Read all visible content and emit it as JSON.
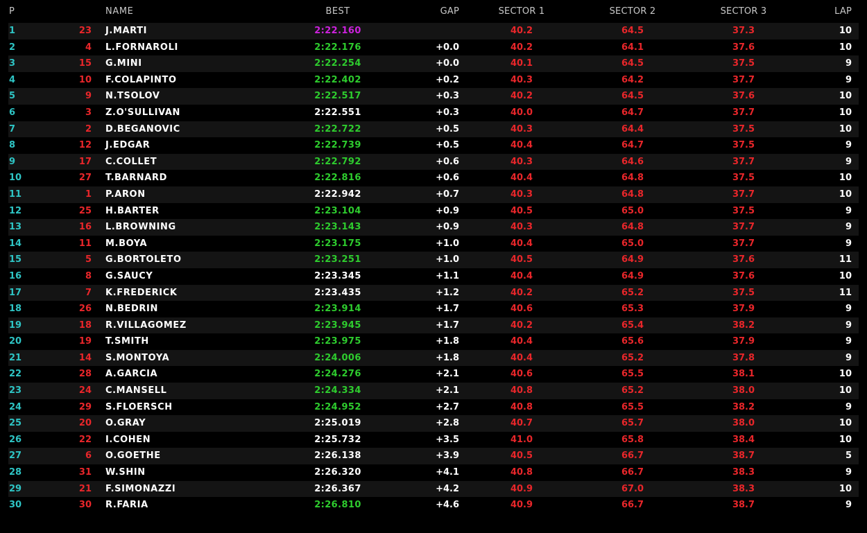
{
  "colors": {
    "background": "#000000",
    "row_stripe": "#141414",
    "position": "#2ec4c4",
    "car_number": "#e8262a",
    "sector": "#e8262a",
    "best_overall": "#cc22dd",
    "best_personal": "#2ecc2e",
    "normal": "#ffffff"
  },
  "headers": {
    "pos": "P",
    "name": "NAME",
    "best": "BEST",
    "gap": "GAP",
    "s1": "SECTOR 1",
    "s2": "SECTOR 2",
    "s3": "SECTOR 3",
    "lap": "LAP"
  },
  "rows": [
    {
      "pos": "1",
      "num": "23",
      "name": "J.MARTI",
      "best": "2:22.160",
      "best_status": "overall",
      "gap": "",
      "s1": "40.2",
      "s2": "64.5",
      "s3": "37.3",
      "lap": "10"
    },
    {
      "pos": "2",
      "num": "4",
      "name": "L.FORNAROLI",
      "best": "2:22.176",
      "best_status": "personal",
      "gap": "+0.0",
      "s1": "40.2",
      "s2": "64.1",
      "s3": "37.6",
      "lap": "10"
    },
    {
      "pos": "3",
      "num": "15",
      "name": "G.MINI",
      "best": "2:22.254",
      "best_status": "personal",
      "gap": "+0.0",
      "s1": "40.1",
      "s2": "64.5",
      "s3": "37.5",
      "lap": "9"
    },
    {
      "pos": "4",
      "num": "10",
      "name": "F.COLAPINTO",
      "best": "2:22.402",
      "best_status": "personal",
      "gap": "+0.2",
      "s1": "40.3",
      "s2": "64.2",
      "s3": "37.7",
      "lap": "9"
    },
    {
      "pos": "5",
      "num": "9",
      "name": "N.TSOLOV",
      "best": "2:22.517",
      "best_status": "personal",
      "gap": "+0.3",
      "s1": "40.2",
      "s2": "64.5",
      "s3": "37.6",
      "lap": "10"
    },
    {
      "pos": "6",
      "num": "3",
      "name": "Z.O'SULLIVAN",
      "best": "2:22.551",
      "best_status": "normal",
      "gap": "+0.3",
      "s1": "40.0",
      "s2": "64.7",
      "s3": "37.7",
      "lap": "10"
    },
    {
      "pos": "7",
      "num": "2",
      "name": "D.BEGANOVIC",
      "best": "2:22.722",
      "best_status": "personal",
      "gap": "+0.5",
      "s1": "40.3",
      "s2": "64.4",
      "s3": "37.5",
      "lap": "10"
    },
    {
      "pos": "8",
      "num": "12",
      "name": "J.EDGAR",
      "best": "2:22.739",
      "best_status": "personal",
      "gap": "+0.5",
      "s1": "40.4",
      "s2": "64.7",
      "s3": "37.5",
      "lap": "9"
    },
    {
      "pos": "9",
      "num": "17",
      "name": "C.COLLET",
      "best": "2:22.792",
      "best_status": "personal",
      "gap": "+0.6",
      "s1": "40.3",
      "s2": "64.6",
      "s3": "37.7",
      "lap": "9"
    },
    {
      "pos": "10",
      "num": "27",
      "name": "T.BARNARD",
      "best": "2:22.816",
      "best_status": "personal",
      "gap": "+0.6",
      "s1": "40.4",
      "s2": "64.8",
      "s3": "37.5",
      "lap": "10"
    },
    {
      "pos": "11",
      "num": "1",
      "name": "P.ARON",
      "best": "2:22.942",
      "best_status": "normal",
      "gap": "+0.7",
      "s1": "40.3",
      "s2": "64.8",
      "s3": "37.7",
      "lap": "10"
    },
    {
      "pos": "12",
      "num": "25",
      "name": "H.BARTER",
      "best": "2:23.104",
      "best_status": "personal",
      "gap": "+0.9",
      "s1": "40.5",
      "s2": "65.0",
      "s3": "37.5",
      "lap": "9"
    },
    {
      "pos": "13",
      "num": "16",
      "name": "L.BROWNING",
      "best": "2:23.143",
      "best_status": "personal",
      "gap": "+0.9",
      "s1": "40.3",
      "s2": "64.8",
      "s3": "37.7",
      "lap": "9"
    },
    {
      "pos": "14",
      "num": "11",
      "name": "M.BOYA",
      "best": "2:23.175",
      "best_status": "personal",
      "gap": "+1.0",
      "s1": "40.4",
      "s2": "65.0",
      "s3": "37.7",
      "lap": "9"
    },
    {
      "pos": "15",
      "num": "5",
      "name": "G.BORTOLETO",
      "best": "2:23.251",
      "best_status": "personal",
      "gap": "+1.0",
      "s1": "40.5",
      "s2": "64.9",
      "s3": "37.6",
      "lap": "11"
    },
    {
      "pos": "16",
      "num": "8",
      "name": "G.SAUCY",
      "best": "2:23.345",
      "best_status": "normal",
      "gap": "+1.1",
      "s1": "40.4",
      "s2": "64.9",
      "s3": "37.6",
      "lap": "10"
    },
    {
      "pos": "17",
      "num": "7",
      "name": "K.FREDERICK",
      "best": "2:23.435",
      "best_status": "normal",
      "gap": "+1.2",
      "s1": "40.2",
      "s2": "65.2",
      "s3": "37.5",
      "lap": "11"
    },
    {
      "pos": "18",
      "num": "26",
      "name": "N.BEDRIN",
      "best": "2:23.914",
      "best_status": "personal",
      "gap": "+1.7",
      "s1": "40.6",
      "s2": "65.3",
      "s3": "37.9",
      "lap": "9"
    },
    {
      "pos": "19",
      "num": "18",
      "name": "R.VILLAGOMEZ",
      "best": "2:23.945",
      "best_status": "personal",
      "gap": "+1.7",
      "s1": "40.2",
      "s2": "65.4",
      "s3": "38.2",
      "lap": "9"
    },
    {
      "pos": "20",
      "num": "19",
      "name": "T.SMITH",
      "best": "2:23.975",
      "best_status": "personal",
      "gap": "+1.8",
      "s1": "40.4",
      "s2": "65.6",
      "s3": "37.9",
      "lap": "9"
    },
    {
      "pos": "21",
      "num": "14",
      "name": "S.MONTOYA",
      "best": "2:24.006",
      "best_status": "personal",
      "gap": "+1.8",
      "s1": "40.4",
      "s2": "65.2",
      "s3": "37.8",
      "lap": "9"
    },
    {
      "pos": "22",
      "num": "28",
      "name": "A.GARCIA",
      "best": "2:24.276",
      "best_status": "personal",
      "gap": "+2.1",
      "s1": "40.6",
      "s2": "65.5",
      "s3": "38.1",
      "lap": "10"
    },
    {
      "pos": "23",
      "num": "24",
      "name": "C.MANSELL",
      "best": "2:24.334",
      "best_status": "personal",
      "gap": "+2.1",
      "s1": "40.8",
      "s2": "65.2",
      "s3": "38.0",
      "lap": "10"
    },
    {
      "pos": "24",
      "num": "29",
      "name": "S.FLOERSCH",
      "best": "2:24.952",
      "best_status": "personal",
      "gap": "+2.7",
      "s1": "40.8",
      "s2": "65.5",
      "s3": "38.2",
      "lap": "9"
    },
    {
      "pos": "25",
      "num": "20",
      "name": "O.GRAY",
      "best": "2:25.019",
      "best_status": "normal",
      "gap": "+2.8",
      "s1": "40.7",
      "s2": "65.7",
      "s3": "38.0",
      "lap": "10"
    },
    {
      "pos": "26",
      "num": "22",
      "name": "I.COHEN",
      "best": "2:25.732",
      "best_status": "normal",
      "gap": "+3.5",
      "s1": "41.0",
      "s2": "65.8",
      "s3": "38.4",
      "lap": "10"
    },
    {
      "pos": "27",
      "num": "6",
      "name": "O.GOETHE",
      "best": "2:26.138",
      "best_status": "normal",
      "gap": "+3.9",
      "s1": "40.5",
      "s2": "66.7",
      "s3": "38.7",
      "lap": "5"
    },
    {
      "pos": "28",
      "num": "31",
      "name": "W.SHIN",
      "best": "2:26.320",
      "best_status": "normal",
      "gap": "+4.1",
      "s1": "40.8",
      "s2": "66.7",
      "s3": "38.3",
      "lap": "9"
    },
    {
      "pos": "29",
      "num": "21",
      "name": "F.SIMONAZZI",
      "best": "2:26.367",
      "best_status": "normal",
      "gap": "+4.2",
      "s1": "40.9",
      "s2": "67.0",
      "s3": "38.3",
      "lap": "10"
    },
    {
      "pos": "30",
      "num": "30",
      "name": "R.FARIA",
      "best": "2:26.810",
      "best_status": "personal",
      "gap": "+4.6",
      "s1": "40.9",
      "s2": "66.7",
      "s3": "38.7",
      "lap": "9"
    }
  ]
}
